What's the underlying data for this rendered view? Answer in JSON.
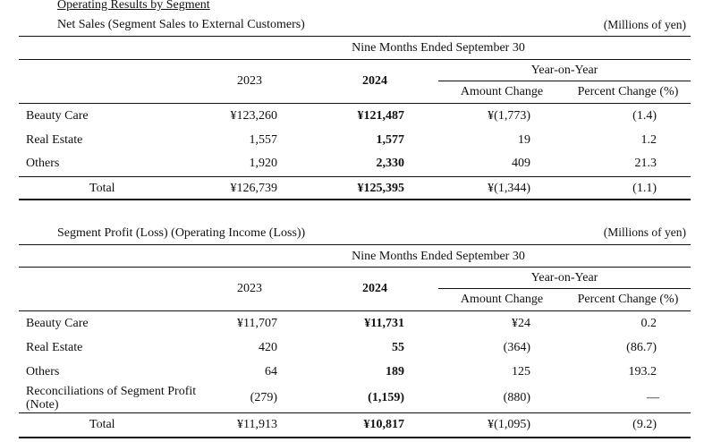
{
  "title": "Operating Results by Segment",
  "unit": "(Millions of yen)",
  "column_headers": {
    "period": "Nine Months Ended September 30",
    "year_2023": "2023",
    "year_2024": "2024",
    "yoy": "Year-on-Year",
    "amount_change": "Amount Change",
    "percent_change": "Percent Change (%)"
  },
  "net_sales": {
    "caption": "Net Sales (Segment Sales to External Customers)",
    "rows": [
      {
        "segment": "Beauty Care",
        "y2023": "¥123,260",
        "y2024": "¥121,487",
        "amount": "¥(1,773)",
        "percent": "(1.4)"
      },
      {
        "segment": "Real Estate",
        "y2023": "1,557",
        "y2024": "1,577",
        "amount": "19",
        "percent": "1.2"
      },
      {
        "segment": "Others",
        "y2023": "1,920",
        "y2024": "2,330",
        "amount": "409",
        "percent": "21.3"
      }
    ],
    "total": {
      "segment": "Total",
      "y2023": "¥126,739",
      "y2024": "¥125,395",
      "amount": "¥(1,344)",
      "percent": "(1.1)"
    }
  },
  "segment_profit": {
    "caption": "Segment Profit (Loss) (Operating Income (Loss))",
    "rows": [
      {
        "segment": "Beauty Care",
        "y2023": "¥11,707",
        "y2024": "¥11,731",
        "amount": "¥24",
        "percent": "0.2"
      },
      {
        "segment": "Real Estate",
        "y2023": "420",
        "y2024": "55",
        "amount": "(364)",
        "percent": "(86.7)"
      },
      {
        "segment": "Others",
        "y2023": "64",
        "y2024": "189",
        "amount": "125",
        "percent": "193.2"
      },
      {
        "segment": "Reconciliations of Segment Profit (Note)",
        "y2023": "(279)",
        "y2024": "(1,159)",
        "amount": "(880)",
        "percent": "—"
      }
    ],
    "total": {
      "segment": "Total",
      "y2023": "¥11,913",
      "y2024": "¥10,817",
      "amount": "¥(1,095)",
      "percent": "(9.2)"
    }
  }
}
